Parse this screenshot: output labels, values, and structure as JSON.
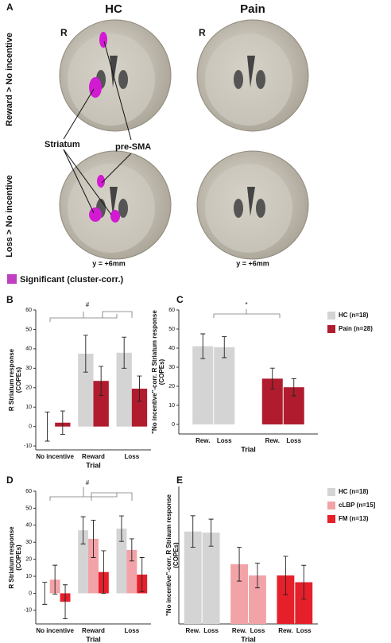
{
  "figure": {
    "panel_label": "A",
    "columns": [
      "HC",
      "Pain"
    ],
    "hemisphere": "R",
    "rows": [
      "Reward > No incentive",
      "Loss > No incentive"
    ],
    "regions": [
      "Striatum",
      "pre-SMA"
    ],
    "slice": "y = +6mm",
    "legend": "Significant (cluster-corr.)"
  },
  "chart_data": [
    {
      "type": "bar",
      "panel_label": "B",
      "grouping": "category",
      "ylabel": [
        "R Striatum response",
        "(COPEs)"
      ],
      "xlabel": "Trial",
      "categories": [
        "No incentive",
        "Reward",
        "Loss"
      ],
      "series": [
        {
          "color": "#d4d4d4",
          "values": [
            0,
            37.5,
            38
          ],
          "errors": [
            7.5,
            9.5,
            8
          ]
        },
        {
          "color": "#b01c2e",
          "values": [
            2,
            23.5,
            19.5
          ],
          "errors": [
            6,
            7.5,
            6.5
          ]
        }
      ],
      "ylim": [
        -12,
        60
      ],
      "yticks": [
        -10,
        0,
        10,
        20,
        30,
        40,
        50,
        60
      ],
      "annotations": [
        "#"
      ]
    },
    {
      "type": "bar",
      "panel_label": "C",
      "grouping": "series",
      "legend": "right",
      "ylabel": [
        "\"No incentive\"-corr. R Striatum response",
        "(COPEs)"
      ],
      "xlabel": "Trial",
      "categories": [
        "Rew.",
        "Loss"
      ],
      "series": [
        {
          "name": "HC (n=18)",
          "color": "#d4d4d4",
          "values": [
            41,
            40.5
          ],
          "errors": [
            6.5,
            5.5
          ]
        },
        {
          "name": "Pain (n=28)",
          "color": "#b01c2e",
          "values": [
            24,
            19.5
          ],
          "errors": [
            5.5,
            4.5
          ]
        }
      ],
      "ylim": [
        -5,
        60
      ],
      "yticks": [
        0,
        10,
        20,
        30,
        40,
        50,
        60
      ],
      "annotations": [
        "*"
      ]
    },
    {
      "type": "bar",
      "panel_label": "D",
      "grouping": "category",
      "ylabel": [
        "R Striatum response",
        "(COPEs)"
      ],
      "xlabel": "Trial",
      "categories": [
        "No incentive",
        "Reward",
        "Loss"
      ],
      "series": [
        {
          "color": "#d4d4d4",
          "values": [
            0,
            37,
            38
          ],
          "errors": [
            6.5,
            8,
            7.5
          ]
        },
        {
          "color": "#f2a3a8",
          "values": [
            8,
            32,
            25.5
          ],
          "errors": [
            8.5,
            11,
            6.5
          ]
        },
        {
          "color": "#e5202b",
          "values": [
            -5,
            12.5,
            11
          ],
          "errors": [
            10,
            12.5,
            10
          ]
        }
      ],
      "ylim": [
        -18,
        60
      ],
      "yticks": [
        -10,
        0,
        10,
        20,
        30,
        40,
        50,
        60
      ],
      "annotations": [
        "#"
      ]
    },
    {
      "type": "bar",
      "panel_label": "E",
      "grouping": "series",
      "legend": "right",
      "ylabel": [
        "\"No incentive\"-corr. R Striaum response",
        "(COPEs)"
      ],
      "xlabel": "Trial",
      "categories": [
        "Rew.",
        "Loss"
      ],
      "series": [
        {
          "name": "HC (n=18)",
          "color": "#d4d4d4",
          "values": [
            41,
            40.5
          ],
          "errors": [
            7,
            6
          ]
        },
        {
          "name": "cLBP (n=15]",
          "color": "#f2a3a8",
          "values": [
            26.5,
            21.5
          ],
          "errors": [
            7.5,
            5.5
          ]
        },
        {
          "name": "FM (n=13)",
          "color": "#e5202b",
          "values": [
            21.5,
            18.5
          ],
          "errors": [
            8.5,
            7.5
          ]
        }
      ],
      "ylim": [
        0,
        61
      ]
    }
  ]
}
